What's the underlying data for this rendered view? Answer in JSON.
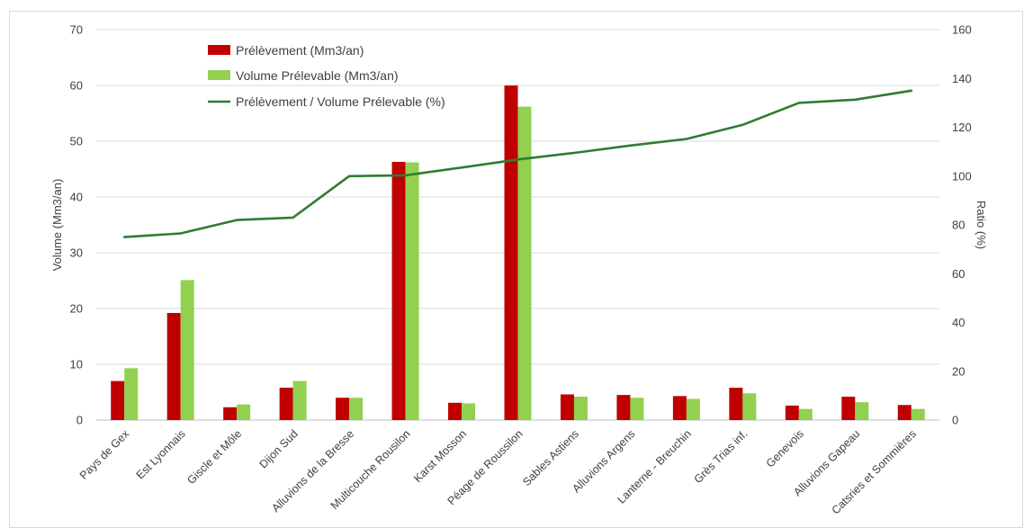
{
  "chart_data": {
    "type": "bar",
    "title": "",
    "categories": [
      "Pays de Gex",
      "Est Lyonnais",
      "Giscle et Môle",
      "Dijon Sud",
      "Alluvions de la Bresse",
      "Multicouche Rousilon",
      "Karst Mosson",
      "Péage de Roussilon",
      "Sables Astiens",
      "Alluvions Argens",
      "Lanterne - Breuchin",
      "Grès Trias inf.",
      "Genevois",
      "Alluvions Gapeau",
      "Catsries et Sommières"
    ],
    "series": [
      {
        "name": "Prélèvement (Mm3/an)",
        "type": "bar",
        "axis": "left",
        "color": "#c00000",
        "values": [
          7.0,
          19.2,
          2.3,
          5.8,
          4.0,
          46.3,
          3.1,
          60.0,
          4.6,
          4.5,
          4.3,
          5.8,
          2.6,
          4.2,
          2.7
        ]
      },
      {
        "name": "Volume Prélevable (Mm3/an)",
        "type": "bar",
        "axis": "left",
        "color": "#92d050",
        "values": [
          9.3,
          25.1,
          2.8,
          7.0,
          4.0,
          46.2,
          3.0,
          56.2,
          4.2,
          4.0,
          3.8,
          4.8,
          2.0,
          3.2,
          2.0
        ]
      },
      {
        "name": "Prélèvement / Volume Prélevable (%)",
        "type": "line",
        "axis": "right",
        "color": "#2e7d32",
        "values": [
          75,
          76.5,
          82,
          83,
          100,
          100.3,
          103.5,
          106.8,
          109.5,
          112.5,
          115.2,
          121,
          130,
          131.3,
          135
        ]
      }
    ],
    "ylabel": "Volume (Mm3/an)",
    "ylim": [
      0,
      70
    ],
    "yticks": [
      "0",
      "10",
      "20",
      "30",
      "40",
      "50",
      "60",
      "70"
    ],
    "y2label": "Ratio (%)",
    "y2lim": [
      0,
      160
    ],
    "y2ticks": [
      "0",
      "20",
      "40",
      "60",
      "80",
      "100",
      "120",
      "140",
      "160"
    ],
    "grid": true,
    "legend_position": "top-left"
  }
}
